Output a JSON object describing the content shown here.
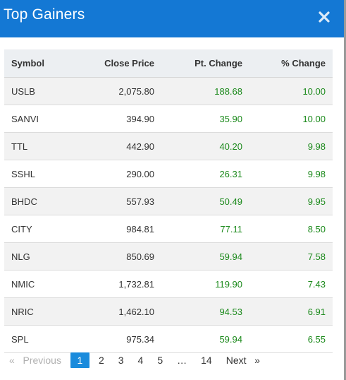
{
  "header": {
    "title": "Top Gainers",
    "close_icon": "close-icon"
  },
  "table": {
    "columns": [
      "Symbol",
      "Close Price",
      "Pt. Change",
      "% Change"
    ],
    "rows": [
      {
        "symbol": "USLB",
        "close": "2,075.80",
        "pt": "188.68",
        "pct": "10.00"
      },
      {
        "symbol": "SANVI",
        "close": "394.90",
        "pt": "35.90",
        "pct": "10.00"
      },
      {
        "symbol": "TTL",
        "close": "442.90",
        "pt": "40.20",
        "pct": "9.98"
      },
      {
        "symbol": "SSHL",
        "close": "290.00",
        "pt": "26.31",
        "pct": "9.98"
      },
      {
        "symbol": "BHDC",
        "close": "557.93",
        "pt": "50.49",
        "pct": "9.95"
      },
      {
        "symbol": "CITY",
        "close": "984.81",
        "pt": "77.11",
        "pct": "8.50"
      },
      {
        "symbol": "NLG",
        "close": "850.69",
        "pt": "59.94",
        "pct": "7.58"
      },
      {
        "symbol": "NMIC",
        "close": "1,732.81",
        "pt": "119.90",
        "pct": "7.43"
      },
      {
        "symbol": "NRIC",
        "close": "1,462.10",
        "pt": "94.53",
        "pct": "6.91"
      },
      {
        "symbol": "SPL",
        "close": "975.34",
        "pt": "59.94",
        "pct": "6.55"
      }
    ]
  },
  "pagination": {
    "prev_arrow": "«",
    "prev_label": "Previous",
    "pages": [
      "1",
      "2",
      "3",
      "4",
      "5"
    ],
    "ellipsis": "…",
    "last_page": "14",
    "next_label": "Next",
    "next_arrow": "»",
    "current": "1"
  },
  "colors": {
    "header_bg": "#1478d4",
    "positive": "#1c8a1c",
    "active_page": "#1a8bdc"
  }
}
